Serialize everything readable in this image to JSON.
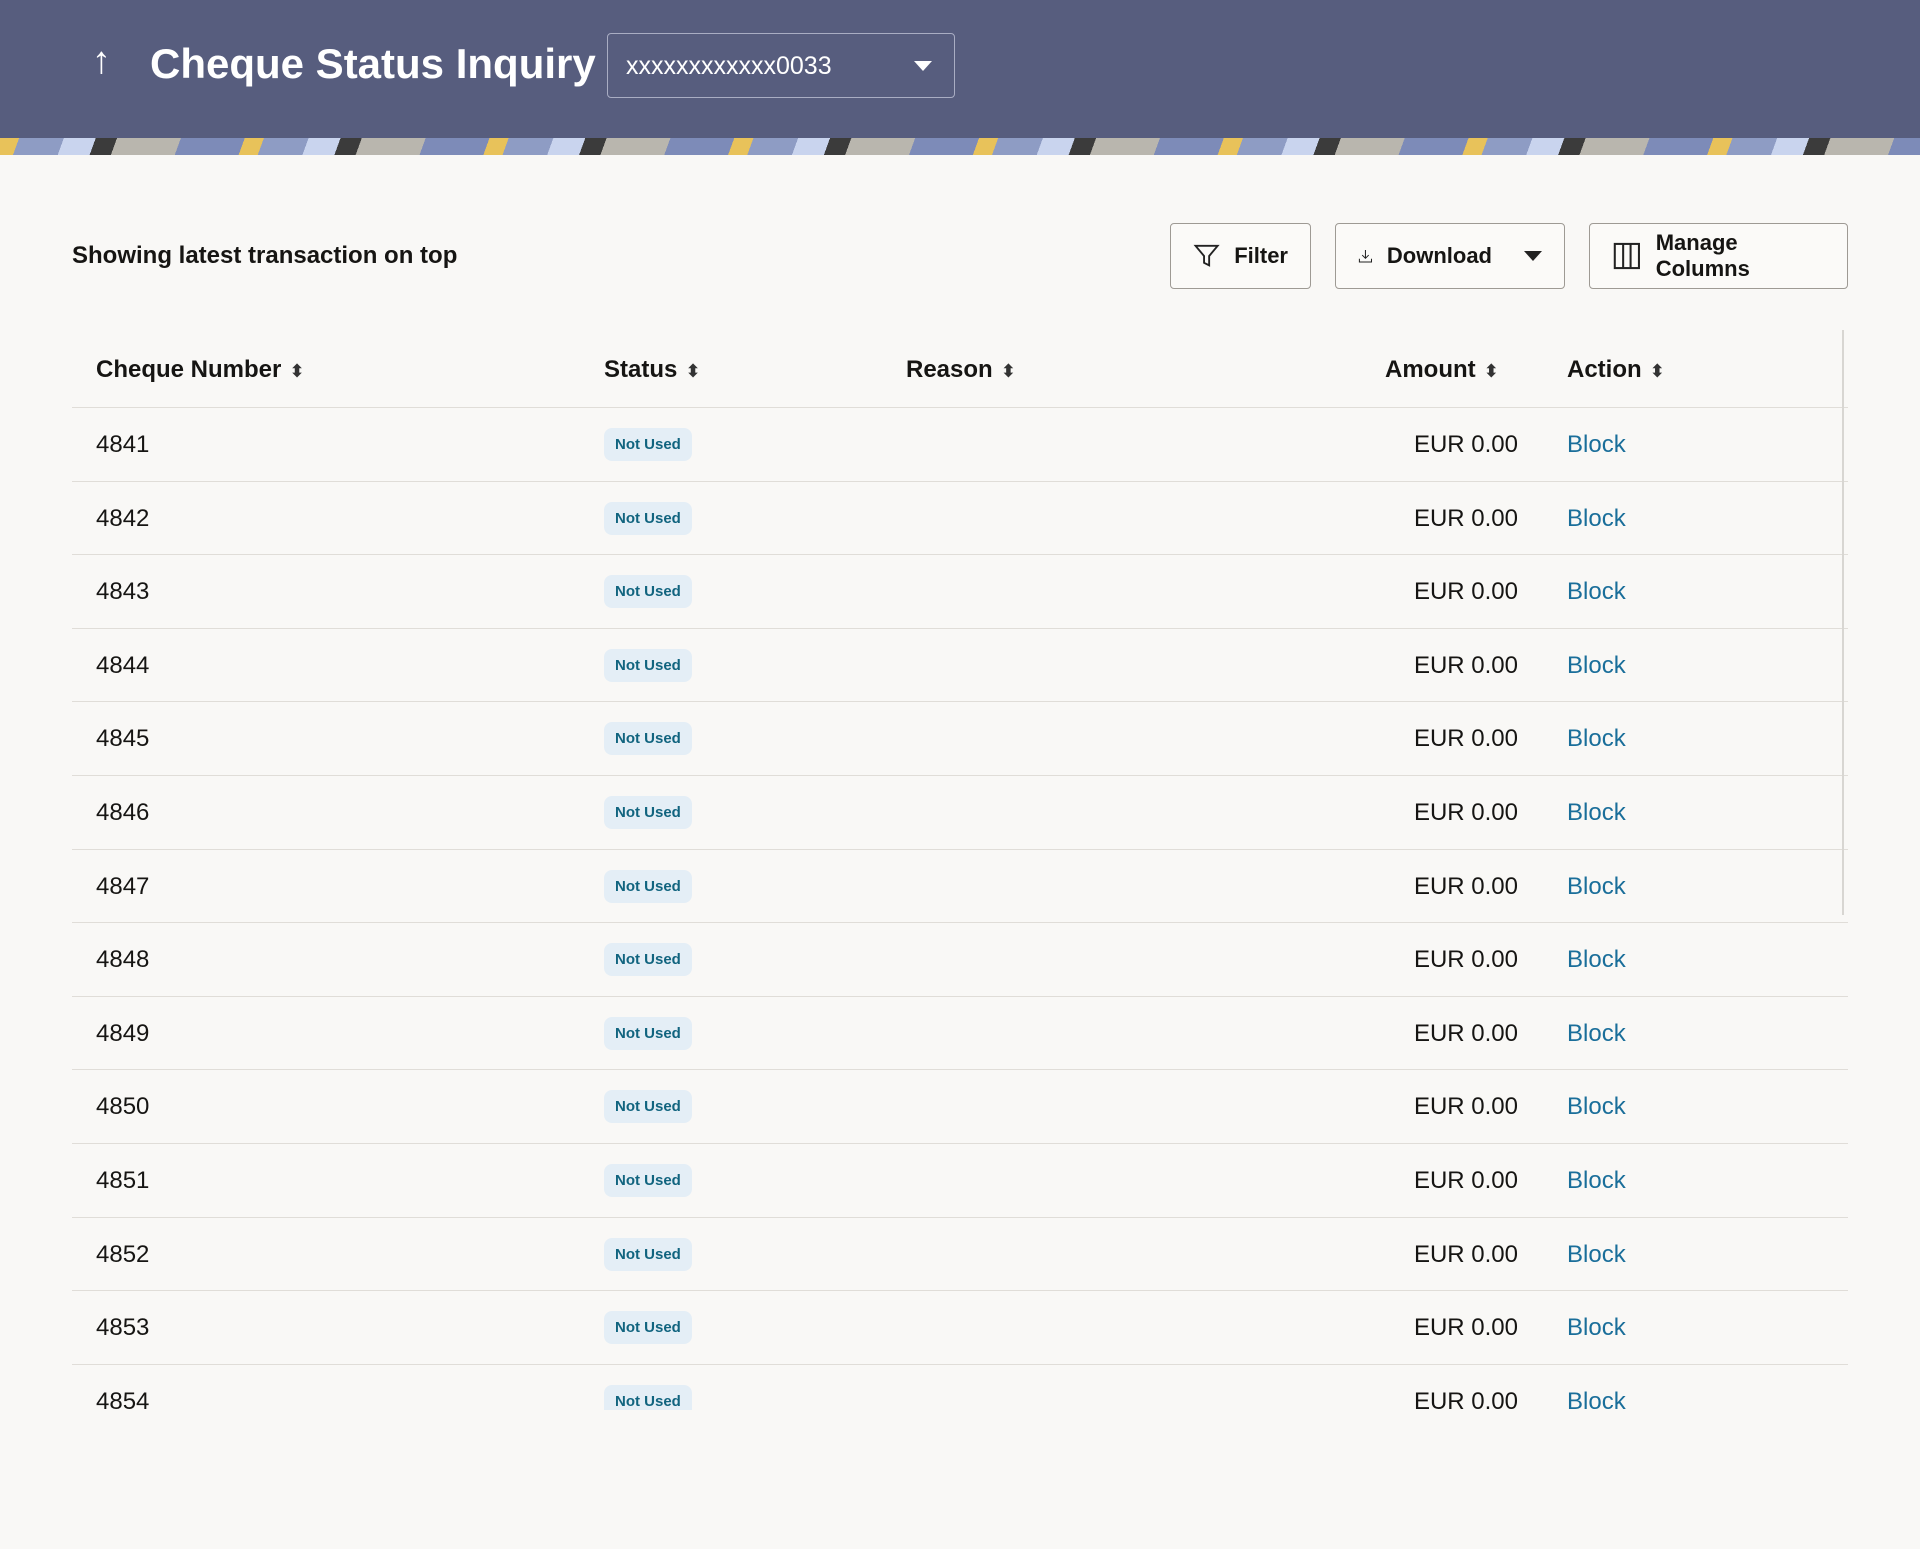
{
  "header": {
    "title": "Cheque Status Inquiry",
    "account": "xxxxxxxxxxxx0033"
  },
  "toolbar": {
    "subtitle": "Showing latest transaction on top",
    "filter": "Filter",
    "download": "Download",
    "manage": "Manage Columns"
  },
  "columns": [
    "Cheque Number",
    "Status",
    "Reason",
    "Amount",
    "Action"
  ],
  "rows": [
    {
      "number": "4841",
      "status": "Not Used",
      "reason": "",
      "amount": "EUR 0.00",
      "action": "Block"
    },
    {
      "number": "4842",
      "status": "Not Used",
      "reason": "",
      "amount": "EUR 0.00",
      "action": "Block"
    },
    {
      "number": "4843",
      "status": "Not Used",
      "reason": "",
      "amount": "EUR 0.00",
      "action": "Block"
    },
    {
      "number": "4844",
      "status": "Not Used",
      "reason": "",
      "amount": "EUR 0.00",
      "action": "Block"
    },
    {
      "number": "4845",
      "status": "Not Used",
      "reason": "",
      "amount": "EUR 0.00",
      "action": "Block"
    },
    {
      "number": "4846",
      "status": "Not Used",
      "reason": "",
      "amount": "EUR 0.00",
      "action": "Block"
    },
    {
      "number": "4847",
      "status": "Not Used",
      "reason": "",
      "amount": "EUR 0.00",
      "action": "Block"
    },
    {
      "number": "4848",
      "status": "Not Used",
      "reason": "",
      "amount": "EUR 0.00",
      "action": "Block"
    },
    {
      "number": "4849",
      "status": "Not Used",
      "reason": "",
      "amount": "EUR 0.00",
      "action": "Block"
    },
    {
      "number": "4850",
      "status": "Not Used",
      "reason": "",
      "amount": "EUR 0.00",
      "action": "Block"
    },
    {
      "number": "4851",
      "status": "Not Used",
      "reason": "",
      "amount": "EUR 0.00",
      "action": "Block"
    },
    {
      "number": "4852",
      "status": "Not Used",
      "reason": "",
      "amount": "EUR 0.00",
      "action": "Block"
    },
    {
      "number": "4853",
      "status": "Not Used",
      "reason": "",
      "amount": "EUR 0.00",
      "action": "Block"
    },
    {
      "number": "4854",
      "status": "Not Used",
      "reason": "",
      "amount": "EUR 0.00",
      "action": "Block"
    }
  ],
  "colors": {
    "header": "#575d7e",
    "link": "#1a6e9a",
    "badge_bg": "#e4eef6",
    "badge_text": "#11647f"
  }
}
